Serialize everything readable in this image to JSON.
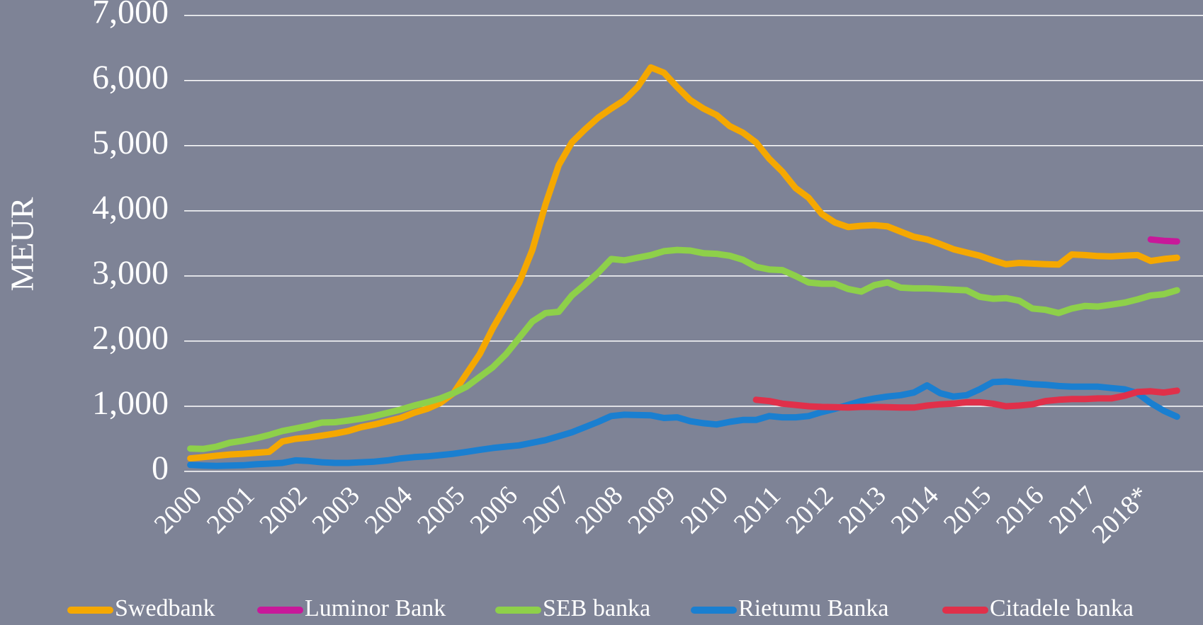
{
  "chart_data": {
    "type": "line",
    "y_label": "MEUR",
    "categories": [
      "2000",
      null,
      null,
      null,
      "2001",
      null,
      null,
      null,
      "2002",
      null,
      null,
      null,
      "2003",
      null,
      null,
      null,
      "2004",
      null,
      null,
      null,
      "2005",
      null,
      null,
      null,
      "2006",
      null,
      null,
      null,
      "2007",
      null,
      null,
      null,
      "2008",
      null,
      null,
      null,
      "2009",
      null,
      null,
      null,
      "2010",
      null,
      null,
      null,
      "2011",
      null,
      null,
      null,
      "2012",
      null,
      null,
      null,
      "2013",
      null,
      null,
      null,
      "2014",
      null,
      null,
      null,
      "2015",
      null,
      null,
      null,
      "2016",
      null,
      null,
      null,
      "2017",
      null,
      null,
      null,
      "2018*",
      null,
      null,
      null
    ],
    "series": [
      {
        "name": "Swedbank",
        "color": "#f5a800",
        "values": [
          200,
          220,
          240,
          260,
          270,
          285,
          300,
          460,
          500,
          520,
          550,
          580,
          620,
          680,
          720,
          770,
          820,
          900,
          960,
          1050,
          1200,
          1500,
          1800,
          2200,
          2550,
          2900,
          3400,
          4100,
          4700,
          5050,
          5250,
          5430,
          5570,
          5700,
          5900,
          6200,
          6120,
          5900,
          5700,
          5570,
          5470,
          5300,
          5200,
          5050,
          4800,
          4600,
          4350,
          4200,
          3950,
          3820,
          3750,
          3770,
          3780,
          3760,
          3680,
          3600,
          3560,
          3490,
          3410,
          3360,
          3310,
          3240,
          3180,
          3200,
          3190,
          3180,
          3175,
          3330,
          3320,
          3305,
          3300,
          3310,
          3320,
          3230,
          3260,
          3280
        ]
      },
      {
        "name": "Luminor Bank",
        "color": "#c8189a",
        "values": [
          null,
          null,
          null,
          null,
          null,
          null,
          null,
          null,
          null,
          null,
          null,
          null,
          null,
          null,
          null,
          null,
          null,
          null,
          null,
          null,
          null,
          null,
          null,
          null,
          null,
          null,
          null,
          null,
          null,
          null,
          null,
          null,
          null,
          null,
          null,
          null,
          null,
          null,
          null,
          null,
          null,
          null,
          null,
          null,
          null,
          null,
          null,
          null,
          null,
          null,
          null,
          null,
          null,
          null,
          null,
          null,
          null,
          null,
          null,
          null,
          null,
          null,
          null,
          null,
          null,
          null,
          null,
          null,
          null,
          null,
          null,
          null,
          null,
          3560,
          3540,
          3530
        ]
      },
      {
        "name": "SEB banka",
        "color": "#8ed04a",
        "values": [
          350,
          345,
          380,
          440,
          470,
          510,
          560,
          620,
          660,
          700,
          750,
          755,
          780,
          810,
          850,
          900,
          950,
          1010,
          1060,
          1120,
          1200,
          1300,
          1450,
          1600,
          1800,
          2050,
          2300,
          2430,
          2450,
          2700,
          2870,
          3050,
          3260,
          3240,
          3280,
          3320,
          3380,
          3400,
          3390,
          3350,
          3340,
          3310,
          3250,
          3140,
          3100,
          3090,
          3000,
          2900,
          2880,
          2880,
          2800,
          2760,
          2860,
          2900,
          2820,
          2810,
          2810,
          2800,
          2790,
          2780,
          2680,
          2650,
          2660,
          2620,
          2500,
          2480,
          2430,
          2500,
          2540,
          2530,
          2560,
          2590,
          2640,
          2700,
          2720,
          2780
        ]
      },
      {
        "name": "Rietumu Banka",
        "color": "#1a7fd0",
        "values": [
          100,
          90,
          85,
          90,
          95,
          110,
          120,
          130,
          170,
          160,
          140,
          130,
          130,
          140,
          150,
          170,
          200,
          220,
          230,
          250,
          270,
          300,
          330,
          360,
          380,
          400,
          440,
          480,
          540,
          600,
          680,
          760,
          850,
          870,
          865,
          860,
          820,
          830,
          770,
          740,
          720,
          760,
          790,
          790,
          850,
          830,
          830,
          850,
          910,
          960,
          1020,
          1080,
          1120,
          1150,
          1170,
          1210,
          1320,
          1200,
          1150,
          1170,
          1260,
          1370,
          1380,
          1360,
          1340,
          1330,
          1310,
          1300,
          1300,
          1300,
          1280,
          1260,
          1200,
          1050,
          930,
          840
        ]
      },
      {
        "name": "Citadele banka",
        "color": "#e0304a",
        "values": [
          null,
          null,
          null,
          null,
          null,
          null,
          null,
          null,
          null,
          null,
          null,
          null,
          null,
          null,
          null,
          null,
          null,
          null,
          null,
          null,
          null,
          null,
          null,
          null,
          null,
          null,
          null,
          null,
          null,
          null,
          null,
          null,
          null,
          null,
          null,
          null,
          null,
          null,
          null,
          null,
          null,
          null,
          null,
          1100,
          1080,
          1040,
          1020,
          1000,
          990,
          985,
          980,
          990,
          990,
          985,
          980,
          980,
          1010,
          1030,
          1040,
          1060,
          1060,
          1040,
          1000,
          1010,
          1030,
          1080,
          1100,
          1110,
          1110,
          1120,
          1120,
          1160,
          1220,
          1230,
          1210,
          1240
        ]
      }
    ],
    "ylim": [
      0,
      7000
    ],
    "yticks": [
      {
        "value": 0,
        "label": "0"
      },
      {
        "value": 1000,
        "label": "1,000"
      },
      {
        "value": 2000,
        "label": "2,000"
      },
      {
        "value": 3000,
        "label": "3,000"
      },
      {
        "value": 4000,
        "label": "4,000"
      },
      {
        "value": 5000,
        "label": "5,000"
      },
      {
        "value": 6000,
        "label": "6,000"
      },
      {
        "value": 7000,
        "label": "7,000"
      }
    ],
    "grid": true,
    "legend": "bottom"
  }
}
